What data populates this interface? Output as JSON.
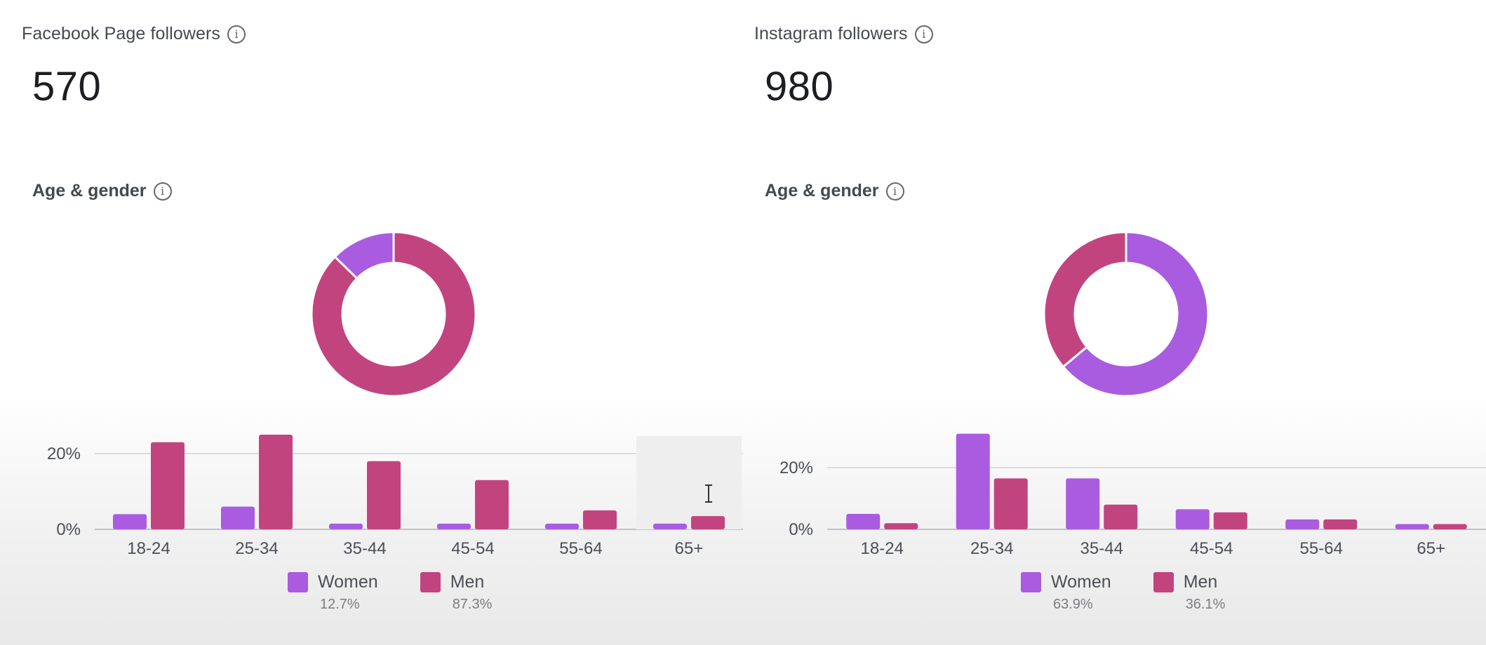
{
  "colors": {
    "women": "#a95ce0",
    "men": "#c2447f",
    "grid": "#dadde1",
    "hover": "#eeeeee"
  },
  "panels": [
    {
      "header": "Facebook Page followers",
      "header_icon": "info-icon",
      "total": "570",
      "section_title": "Age & gender",
      "section_icon": "info-icon",
      "legend": [
        {
          "label": "Women",
          "pct": "12.7%"
        },
        {
          "label": "Men",
          "pct": "87.3%"
        }
      ]
    },
    {
      "header": "Instagram followers",
      "header_icon": "info-icon",
      "total": "980",
      "section_title": "Age & gender",
      "section_icon": "info-icon",
      "legend": [
        {
          "label": "Women",
          "pct": "63.9%"
        },
        {
          "label": "Men",
          "pct": "36.1%"
        }
      ]
    }
  ],
  "chart_data": [
    {
      "type": "donut",
      "categories": [
        "Women",
        "Men"
      ],
      "values": [
        12.7,
        87.3
      ]
    },
    {
      "type": "bar",
      "categories": [
        "18-24",
        "25-34",
        "35-44",
        "45-54",
        "55-64",
        "65+"
      ],
      "series": [
        {
          "name": "Women",
          "values": [
            4,
            6,
            1.5,
            1.5,
            1.5,
            1.5
          ]
        },
        {
          "name": "Men",
          "values": [
            23,
            25,
            18,
            13,
            5,
            3.5
          ]
        }
      ],
      "y_ticks": [
        "0%",
        "20%"
      ],
      "ylim": [
        0,
        25
      ],
      "highlighted_category": "65+"
    },
    {
      "type": "donut",
      "categories": [
        "Women",
        "Men"
      ],
      "values": [
        63.9,
        36.1
      ]
    },
    {
      "type": "bar",
      "categories": [
        "18-24",
        "25-34",
        "35-44",
        "45-54",
        "55-64",
        "65+"
      ],
      "series": [
        {
          "name": "Women",
          "values": [
            5,
            31,
            16.5,
            6.5,
            3.2,
            1.7
          ]
        },
        {
          "name": "Men",
          "values": [
            2,
            16.5,
            8,
            5.5,
            3.2,
            1.7
          ]
        }
      ],
      "y_ticks": [
        "0%",
        "20%"
      ],
      "ylim": [
        0,
        31
      ]
    }
  ]
}
